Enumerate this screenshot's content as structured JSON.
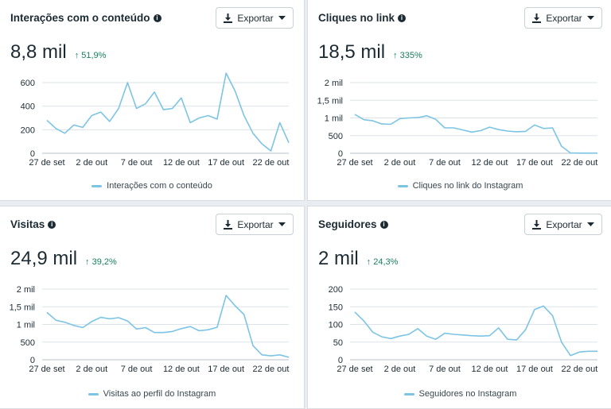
{
  "colors": {
    "line": "#7cc4e4",
    "grid": "#dde3e8",
    "positive": "#19815b",
    "text": "#1c2b33"
  },
  "icons": {
    "info": "info-icon",
    "export": "download-icon",
    "dropdown": "caret-down-icon",
    "trend": "arrow-up-icon"
  },
  "export_label": "Exportar",
  "cards": [
    {
      "title": "Interações com o conteúdo",
      "value": "8,8 mil",
      "change": "↑ 51,9%",
      "legend": "Interações com o conteúdo"
    },
    {
      "title": "Cliques no link",
      "value": "18,5 mil",
      "change": "↑ 335%",
      "legend": "Cliques no link do Instagram"
    },
    {
      "title": "Visitas",
      "value": "24,9 mil",
      "change": "↑ 39,2%",
      "legend": "Visitas ao perfil do Instagram"
    },
    {
      "title": "Seguidores",
      "value": "2 mil",
      "change": "↑ 24,3%",
      "legend": "Seguidores no Instagram"
    }
  ],
  "chart_data": [
    {
      "type": "line",
      "title": "Interações com o conteúdo",
      "x_tick_labels": [
        "27 de set",
        "2 de out",
        "7 de out",
        "12 de out",
        "17 de out",
        "22 de out"
      ],
      "y_tick_labels": [
        "0",
        "200",
        "400",
        "600"
      ],
      "ylim": [
        0,
        600
      ],
      "grid": true,
      "legend_position": "bottom-center",
      "series": [
        {
          "name": "Interações com o conteúdo",
          "values": [
            280,
            210,
            170,
            240,
            220,
            320,
            350,
            270,
            380,
            600,
            380,
            420,
            520,
            370,
            380,
            470,
            260,
            300,
            320,
            290,
            680,
            530,
            320,
            170,
            80,
            20,
            260,
            90
          ]
        }
      ]
    },
    {
      "type": "line",
      "title": "Cliques no link",
      "x_tick_labels": [
        "27 de set",
        "2 de out",
        "7 de out",
        "12 de out",
        "17 de out",
        "22 de out"
      ],
      "y_tick_labels": [
        "0",
        "500",
        "1 mil",
        "1,5 mil",
        "2 mil"
      ],
      "ylim": [
        0,
        2000
      ],
      "grid": true,
      "legend_position": "bottom-center",
      "series": [
        {
          "name": "Cliques no link do Instagram",
          "values": [
            1100,
            950,
            920,
            830,
            820,
            980,
            1000,
            1010,
            1060,
            960,
            720,
            720,
            660,
            600,
            640,
            740,
            670,
            630,
            610,
            620,
            800,
            700,
            720,
            200,
            10,
            5,
            5,
            5
          ]
        }
      ]
    },
    {
      "type": "line",
      "title": "Visitas",
      "x_tick_labels": [
        "27 de set",
        "2 de out",
        "7 de out",
        "12 de out",
        "17 de out",
        "22 de out"
      ],
      "y_tick_labels": [
        "0",
        "500",
        "1 mil",
        "1,5 mil",
        "2 mil"
      ],
      "ylim": [
        0,
        2000
      ],
      "grid": true,
      "legend_position": "bottom-center",
      "series": [
        {
          "name": "Visitas ao perfil do Instagram",
          "values": [
            1340,
            1120,
            1060,
            970,
            910,
            1080,
            1200,
            1160,
            1190,
            1100,
            870,
            910,
            770,
            770,
            800,
            880,
            940,
            820,
            850,
            920,
            1820,
            1530,
            1280,
            400,
            140,
            110,
            140,
            70
          ]
        }
      ]
    },
    {
      "type": "line",
      "title": "Seguidores",
      "x_tick_labels": [
        "27 de set",
        "2 de out",
        "7 de out",
        "12 de out",
        "17 de out",
        "22 de out"
      ],
      "y_tick_labels": [
        "0",
        "50",
        "100",
        "150",
        "200"
      ],
      "ylim": [
        0,
        200
      ],
      "grid": true,
      "legend_position": "bottom-center",
      "series": [
        {
          "name": "Seguidores no Instagram",
          "values": [
            135,
            110,
            78,
            65,
            60,
            67,
            72,
            88,
            67,
            58,
            75,
            72,
            70,
            68,
            67,
            68,
            90,
            58,
            56,
            85,
            142,
            152,
            125,
            50,
            12,
            22,
            24,
            24
          ]
        }
      ]
    }
  ]
}
